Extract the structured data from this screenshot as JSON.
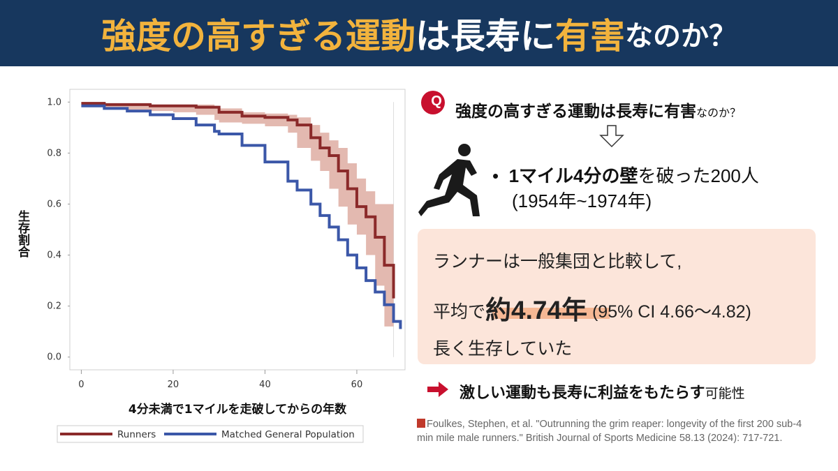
{
  "header": {
    "title": [
      "強度の高すぎる運動",
      "は長寿に",
      "有害",
      "なのか？"
    ]
  },
  "question": {
    "badge": "Q",
    "text": "強度の高すぎる運動は長寿に有害",
    "suffix": "なのか？"
  },
  "bullet": {
    "bold": "1マイル4分の壁",
    "text": "を破った200人",
    "period": "(1954年~1974年)"
  },
  "summary": {
    "line1": "ランナーは一般集団と比較して,",
    "prefix": "平均で",
    "highlight": "約4.74年",
    "ci": "(95% CI 4.66〜4.82)",
    "line3": "長く生存していた"
  },
  "conclusion": {
    "bold": "激しい運動も長寿に利益をもたらす",
    "suffix": "可能性"
  },
  "citation": "Foulkes, Stephen, et al. \"Outrunning the grim reaper: longevity of the first 200 sub-4 min mile male runners.\" British Journal of Sports Medicine 58.13 (2024): 717-721.",
  "chart_data": {
    "type": "step",
    "x_label": "4分未満で1マイルを走破してからの年数",
    "y_label": "生存割合",
    "x": [
      0,
      5,
      10,
      15,
      20,
      25,
      29,
      30,
      35,
      40,
      45,
      47,
      50,
      52,
      54,
      56,
      58,
      60,
      62,
      64,
      66,
      68,
      69.5
    ],
    "series": [
      {
        "name": "Runners",
        "color": "#8b2a2a",
        "band_color": "#d9a195",
        "values": [
          0.995,
          0.99,
          0.99,
          0.985,
          0.985,
          0.98,
          0.98,
          0.96,
          0.945,
          0.94,
          0.93,
          0.91,
          0.86,
          0.82,
          0.79,
          0.73,
          0.66,
          0.59,
          0.55,
          0.47,
          0.36,
          0.23,
          null
        ],
        "upper": [
          1.0,
          0.995,
          0.995,
          0.99,
          0.99,
          0.99,
          0.985,
          0.975,
          0.96,
          0.955,
          0.95,
          0.94,
          0.91,
          0.88,
          0.85,
          0.82,
          0.76,
          0.7,
          0.65,
          0.6,
          0.6,
          0.6,
          null
        ],
        "lower": [
          0.99,
          0.98,
          0.975,
          0.97,
          0.965,
          0.96,
          0.95,
          0.93,
          0.92,
          0.915,
          0.905,
          0.88,
          0.82,
          0.77,
          0.73,
          0.66,
          0.59,
          0.52,
          0.48,
          0.4,
          0.28,
          0.12,
          null
        ]
      },
      {
        "name": "Matched General Population",
        "color": "#3b57a8",
        "values": [
          0.985,
          0.975,
          0.965,
          0.95,
          0.935,
          0.91,
          0.885,
          0.875,
          0.83,
          0.765,
          0.69,
          0.655,
          0.6,
          0.555,
          0.51,
          0.46,
          0.4,
          0.35,
          0.3,
          0.255,
          0.205,
          0.14,
          0.11
        ]
      }
    ],
    "xlim": [
      -2.5,
      70.5
    ],
    "xticks": [
      0,
      20,
      40,
      60
    ],
    "ylim": [
      -0.05,
      1.05
    ],
    "yticks": [
      {
        "value": 0,
        "label": "0.0"
      },
      0.2,
      0.4,
      0.6,
      0.8,
      {
        "value": 1,
        "label": "1.0"
      }
    ]
  }
}
